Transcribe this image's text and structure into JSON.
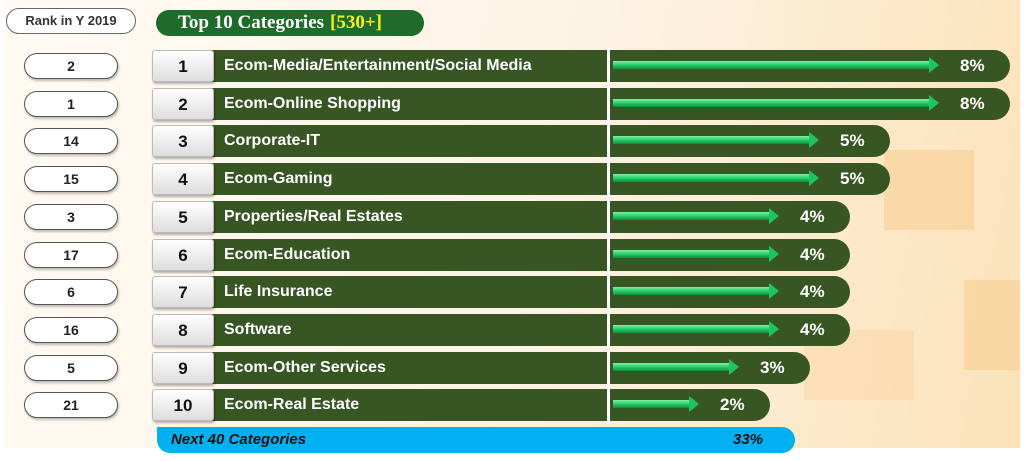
{
  "header": {
    "rank_label": "Rank in Y 2019",
    "title": "Top 10 Categories",
    "title_highlight": "[530+]"
  },
  "chart_data": {
    "type": "bar",
    "title": "Top 10 Categories [530+]",
    "unit": "%",
    "rows": [
      {
        "rank_2019": "2",
        "rank": "1",
        "category": "Ecom-Media/Entertainment/Social Media",
        "value": 8,
        "label": "8%"
      },
      {
        "rank_2019": "1",
        "rank": "2",
        "category": "Ecom-Online Shopping",
        "value": 8,
        "label": "8%"
      },
      {
        "rank_2019": "14",
        "rank": "3",
        "category": "Corporate-IT",
        "value": 5,
        "label": "5%"
      },
      {
        "rank_2019": "15",
        "rank": "4",
        "category": "Ecom-Gaming",
        "value": 5,
        "label": "5%"
      },
      {
        "rank_2019": "3",
        "rank": "5",
        "category": "Properties/Real Estates",
        "value": 4,
        "label": "4%"
      },
      {
        "rank_2019": "17",
        "rank": "6",
        "category": "Ecom-Education",
        "value": 4,
        "label": "4%"
      },
      {
        "rank_2019": "6",
        "rank": "7",
        "category": "Life Insurance",
        "value": 4,
        "label": "4%"
      },
      {
        "rank_2019": "16",
        "rank": "8",
        "category": "Software",
        "value": 4,
        "label": "4%"
      },
      {
        "rank_2019": "5",
        "rank": "9",
        "category": "Ecom-Other Services",
        "value": 3,
        "label": "3%"
      },
      {
        "rank_2019": "21",
        "rank": "10",
        "category": "Ecom-Real Estate",
        "value": 2,
        "label": "2%"
      }
    ],
    "others": {
      "category": "Next 40 Categories",
      "value": 33,
      "label": "33%"
    }
  },
  "colors": {
    "bar": "#375623",
    "arrow": "#1fc460",
    "others": "#00b0f0",
    "title_bg": "#1f6b2b",
    "highlight": "#f4f020"
  }
}
